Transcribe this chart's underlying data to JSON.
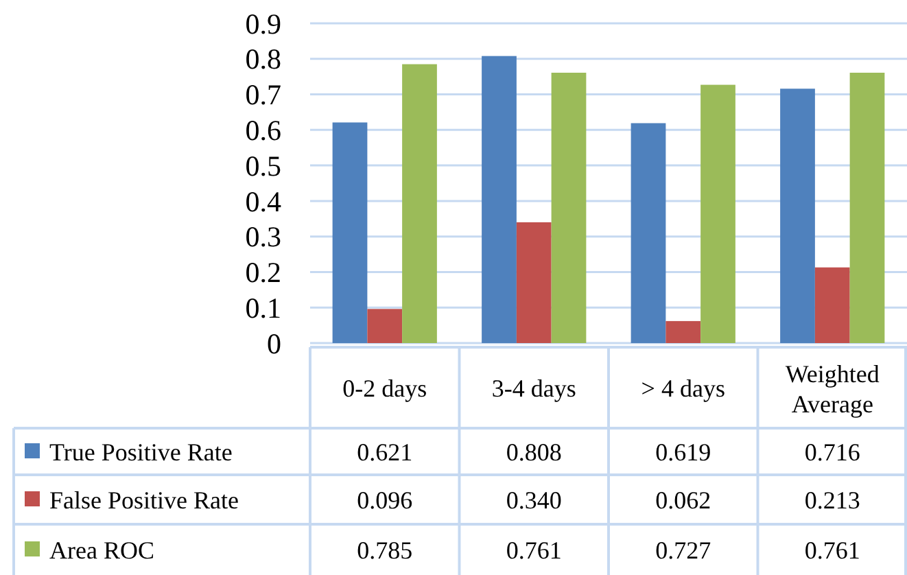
{
  "chart_data": {
    "type": "bar",
    "categories": [
      "0-2 days",
      "3-4 days",
      "> 4 days",
      "Weighted Average"
    ],
    "series": [
      {
        "name": "True Positive Rate",
        "color": "#4f81bd",
        "values": [
          0.621,
          0.808,
          0.619,
          0.716
        ],
        "value_labels": [
          "0.621",
          "0.808",
          "0.619",
          "0.716"
        ]
      },
      {
        "name": "False Positive Rate",
        "color": "#c0504d",
        "values": [
          0.096,
          0.34,
          0.062,
          0.213
        ],
        "value_labels": [
          "0.096",
          "0.340",
          "0.062",
          "0.213"
        ]
      },
      {
        "name": "Area ROC",
        "color": "#9bbb59",
        "values": [
          0.785,
          0.761,
          0.727,
          0.761
        ],
        "value_labels": [
          "0.785",
          "0.761",
          "0.727",
          "0.761"
        ]
      }
    ],
    "ylim": [
      0,
      0.9
    ],
    "yticks": [
      0,
      0.1,
      0.2,
      0.3,
      0.4,
      0.5,
      0.6,
      0.7,
      0.8,
      0.9
    ],
    "grid": "y",
    "legend": "bottom"
  }
}
